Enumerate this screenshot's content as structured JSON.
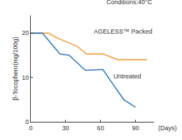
{
  "chart_data": {
    "type": "line",
    "annotations": [
      "Conditions:40°C"
    ],
    "x_label": "(Days)",
    "y_label": "β-Tocophero(mg/100g)",
    "xlim": [
      0,
      106
    ],
    "ylim": [
      0,
      24
    ],
    "xticks": [
      0,
      30,
      60,
      90
    ],
    "yticks": [
      0,
      10,
      20
    ],
    "grid": false,
    "series": [
      {
        "name": "AGELESS™ Packed",
        "color": "#f0a040",
        "x": [
          0,
          15,
          22,
          40,
          48,
          62,
          75,
          100
        ],
        "values": [
          20,
          20,
          19,
          17,
          15.3,
          15.3,
          14,
          14
        ]
      },
      {
        "name": "Untreated",
        "color": "#2e78b8",
        "x": [
          0,
          10,
          25,
          33,
          47,
          62,
          72,
          80,
          90
        ],
        "values": [
          20,
          20,
          15.3,
          15,
          11.6,
          11.8,
          8,
          5,
          3.3
        ]
      }
    ]
  }
}
